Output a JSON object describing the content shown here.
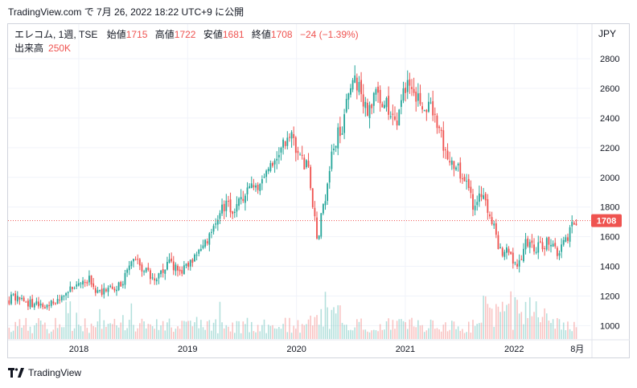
{
  "header": {
    "text": "TradingView.com で 7月 26, 2022 18:22 UTC+9 に公開"
  },
  "legend": {
    "symbol": "エレコム, 1週, TSE",
    "open_label": "始値",
    "open": "1715",
    "high_label": "高値",
    "high": "1722",
    "low_label": "安値",
    "low": "1681",
    "close_label": "終値",
    "close": "1708",
    "change": "−24 (−1.39%)",
    "volume_label": "出来高",
    "volume": "250K"
  },
  "currency": "JPY",
  "price_tag": "1708",
  "footer": {
    "brand": "TradingView",
    "icon": "tradingview-logo-icon"
  },
  "colors": {
    "up": "#26a69a",
    "down": "#ef5350",
    "grid": "#f0f3fa",
    "price_line": "#ef5350"
  },
  "chart_data": {
    "type": "candlestick",
    "title": "",
    "ylabel": "",
    "xlabel": "",
    "y_ticks": [
      1000,
      1200,
      1400,
      1600,
      1800,
      2000,
      2200,
      2400,
      2600,
      2800
    ],
    "ylim": [
      910,
      2860
    ],
    "x_ticks": [
      "2018",
      "2019",
      "2020",
      "2021",
      "2022",
      "8月"
    ],
    "xlim": [
      2017.35,
      2022.7
    ],
    "x_tick_positions": [
      2018.0,
      2019.0,
      2020.0,
      2021.0,
      2022.0,
      2022.58
    ],
    "last_price": 1708,
    "grid": true,
    "volume_max_k": 1000,
    "price_path": [
      [
        2017.35,
        1170
      ],
      [
        2017.45,
        1200
      ],
      [
        2017.55,
        1150
      ],
      [
        2017.65,
        1130
      ],
      [
        2017.8,
        1160
      ],
      [
        2017.95,
        1270
      ],
      [
        2018.1,
        1320
      ],
      [
        2018.2,
        1210
      ],
      [
        2018.3,
        1250
      ],
      [
        2018.4,
        1280
      ],
      [
        2018.5,
        1450
      ],
      [
        2018.6,
        1380
      ],
      [
        2018.7,
        1330
      ],
      [
        2018.85,
        1420
      ],
      [
        2018.95,
        1350
      ],
      [
        2019.05,
        1440
      ],
      [
        2019.15,
        1540
      ],
      [
        2019.25,
        1660
      ],
      [
        2019.35,
        1820
      ],
      [
        2019.45,
        1760
      ],
      [
        2019.55,
        1940
      ],
      [
        2019.65,
        1950
      ],
      [
        2019.75,
        2050
      ],
      [
        2019.85,
        2160
      ],
      [
        2019.95,
        2280
      ],
      [
        2020.05,
        2100
      ],
      [
        2020.12,
        2060
      ],
      [
        2020.2,
        1580
      ],
      [
        2020.27,
        1860
      ],
      [
        2020.35,
        2220
      ],
      [
        2020.45,
        2380
      ],
      [
        2020.52,
        2720
      ],
      [
        2020.6,
        2580
      ],
      [
        2020.68,
        2440
      ],
      [
        2020.75,
        2560
      ],
      [
        2020.85,
        2480
      ],
      [
        2020.92,
        2330
      ],
      [
        2021.0,
        2640
      ],
      [
        2021.08,
        2580
      ],
      [
        2021.15,
        2470
      ],
      [
        2021.25,
        2450
      ],
      [
        2021.35,
        2240
      ],
      [
        2021.45,
        2090
      ],
      [
        2021.55,
        1980
      ],
      [
        2021.65,
        1790
      ],
      [
        2021.72,
        1900
      ],
      [
        2021.8,
        1720
      ],
      [
        2021.87,
        1520
      ],
      [
        2021.95,
        1490
      ],
      [
        2022.05,
        1400
      ],
      [
        2022.12,
        1560
      ],
      [
        2022.2,
        1520
      ],
      [
        2022.3,
        1560
      ],
      [
        2022.4,
        1500
      ],
      [
        2022.48,
        1560
      ],
      [
        2022.55,
        1680
      ],
      [
        2022.58,
        1708
      ]
    ]
  }
}
